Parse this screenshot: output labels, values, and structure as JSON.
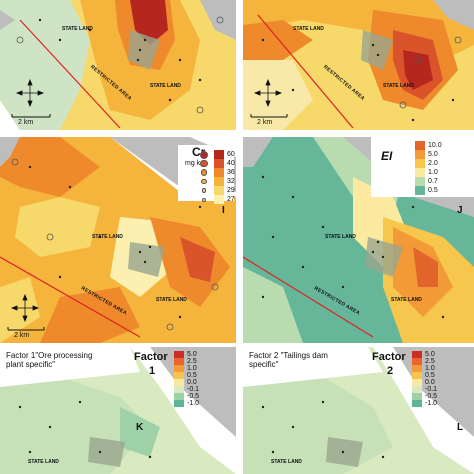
{
  "panels": [
    {
      "letter": "",
      "state_land": "STATE LAND",
      "state_land2": "STATE LAND",
      "restricted": "RESTRICTED AREA",
      "scale": "2 km"
    },
    {
      "letter": "",
      "state_land": "STATE LAND",
      "state_land2": "STATE LAND",
      "restricted": "RESTRICTED AREA",
      "scale": "2 km"
    },
    {
      "letter": "I",
      "state_land": "STATE LAND",
      "state_land2": "STATE LAND",
      "restricted": "RESTRICTED AREA",
      "scale": "2 km",
      "legend": {
        "title": "Cr",
        "unit": "mg kg",
        "labels": [
          "60",
          "40",
          "36",
          "32",
          "29",
          "27"
        ],
        "colors": [
          "#b5261e",
          "#d9542a",
          "#ee8a2c",
          "#f5b53c",
          "#f7d86a",
          "#fbf0b0"
        ]
      }
    },
    {
      "letter": "J",
      "state_land": "STATE LAND",
      "state_land2": "STATE LAND",
      "restricted": "RESTRICTED AREA",
      "scale": "2 km",
      "legend": {
        "title": "EI",
        "labels": [
          "10.0",
          "5.0",
          "2.0",
          "1.0",
          "0.7",
          "0.5"
        ],
        "colors": [
          "#e2662c",
          "#f19a37",
          "#f7c64c",
          "#fbeaa0",
          "#b9dbb0",
          "#66b69a"
        ]
      }
    },
    {
      "letter": "K",
      "factor_desc": "Factor 1\"Ore processing plant specific\"",
      "state_land": "STATE LAND",
      "legend": {
        "title": "Factor",
        "subtitle": "1",
        "labels": [
          "5.0",
          "2.5",
          "1.0",
          "0.5",
          "0.0",
          "-0.1",
          "-0.5",
          "-1.0"
        ],
        "colors": [
          "#c92d25",
          "#e9652d",
          "#f49a39",
          "#f8c451",
          "#fbe8a0",
          "#d9e9c0",
          "#9fd1a8",
          "#5cb695"
        ]
      }
    },
    {
      "letter": "L",
      "factor_desc": "Factor 2 \"Tailings dam specific\"",
      "state_land": "STATE LAND",
      "legend": {
        "title": "Factor",
        "subtitle": "2",
        "labels": [
          "5.0",
          "2.5",
          "1.0",
          "0.5",
          "0.0",
          "-0.1",
          "-0.5",
          "-1.0"
        ],
        "colors": [
          "#c92d25",
          "#e9652d",
          "#f49a39",
          "#f8c451",
          "#fbe8a0",
          "#d9e9c0",
          "#9fd1a8",
          "#5cb695"
        ]
      }
    }
  ]
}
